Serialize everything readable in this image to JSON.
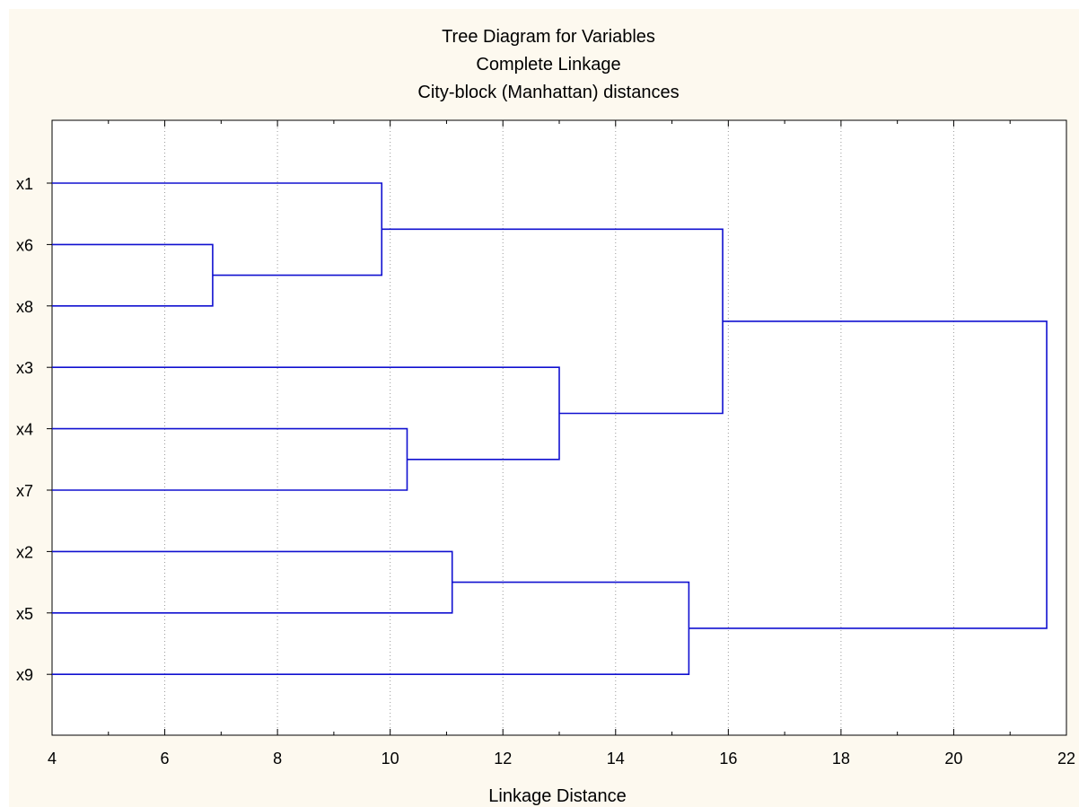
{
  "chart_data": {
    "type": "dendrogram",
    "title": "Tree Diagram for  Variables",
    "subtitle_1": "Complete Linkage",
    "subtitle_2": "City-block (Manhattan) distances",
    "xlabel": "Linkage Distance",
    "xlim": [
      4,
      22
    ],
    "x_ticks": [
      4,
      6,
      8,
      10,
      12,
      14,
      16,
      18,
      20,
      22
    ],
    "grid": true,
    "line_color": "#1010d0",
    "leaves": [
      "x1",
      "x6",
      "x8",
      "x3",
      "x4",
      "x7",
      "x2",
      "x5",
      "x9"
    ],
    "merges": [
      {
        "a": "x6",
        "b": "x8",
        "distance": 6.85
      },
      {
        "a": "x1",
        "b": "x6+x8",
        "distance": 9.85
      },
      {
        "a": "x4",
        "b": "x7",
        "distance": 10.3
      },
      {
        "a": "x2",
        "b": "x5",
        "distance": 11.1
      },
      {
        "a": "x3",
        "b": "x4+x7",
        "distance": 13.0
      },
      {
        "a": "x2+x5",
        "b": "x9",
        "distance": 15.3
      },
      {
        "a": "x1+x6+x8",
        "b": "x3+x4+x7",
        "distance": 15.9
      },
      {
        "a": "x1+x6+x8+x3+x4+x7",
        "b": "x2+x5+x9",
        "distance": 21.65
      }
    ]
  }
}
